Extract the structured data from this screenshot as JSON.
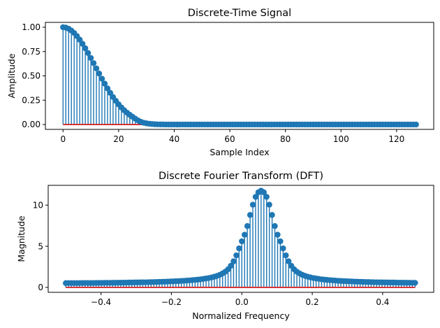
{
  "chart_data": [
    {
      "type": "stem",
      "title": "Discrete-Time Signal",
      "xlabel": "Sample Index",
      "ylabel": "Amplitude",
      "xlim": [
        -6.35,
        133.35
      ],
      "ylim": [
        -0.05,
        1.05
      ],
      "xticks": [
        0,
        20,
        40,
        60,
        80,
        100,
        120
      ],
      "xtick_labels": [
        "0",
        "20",
        "40",
        "60",
        "80",
        "100",
        "120"
      ],
      "yticks": [
        0.0,
        0.25,
        0.5,
        0.75,
        1.0
      ],
      "ytick_labels": [
        "0.00",
        "0.25",
        "0.50",
        "0.75",
        "1.00"
      ],
      "colors": {
        "stem": "#1f77b4",
        "baseline": "#d62728"
      },
      "series": [
        {
          "x_start": 0,
          "x_step": 1,
          "values": [
            1.0,
            0.996,
            0.985,
            0.966,
            0.941,
            0.909,
            0.872,
            0.83,
            0.784,
            0.735,
            0.684,
            0.631,
            0.577,
            0.524,
            0.471,
            0.42,
            0.371,
            0.325,
            0.282,
            0.243,
            0.207,
            0.175,
            0.147,
            0.122,
            0.1,
            0.08,
            0.06,
            0.042,
            0.028,
            0.018,
            0.012,
            0.008,
            0.005,
            0.003,
            0.002,
            0.001,
            0.001,
            0,
            0,
            0,
            0,
            0,
            0,
            0,
            0,
            0,
            0,
            0,
            0,
            0,
            0,
            0,
            0,
            0,
            0,
            0,
            0,
            0,
            0,
            0,
            0,
            0,
            0,
            0,
            0,
            0,
            0,
            0,
            0,
            0,
            0,
            0,
            0,
            0,
            0,
            0,
            0,
            0,
            0,
            0,
            0,
            0,
            0,
            0,
            0,
            0,
            0,
            0,
            0,
            0,
            0,
            0,
            0,
            0,
            0,
            0,
            0,
            0,
            0,
            0,
            0,
            0,
            0,
            0,
            0,
            0,
            0,
            0,
            0,
            0,
            0,
            0,
            0,
            0,
            0,
            0,
            0,
            0,
            0,
            0,
            0,
            0,
            0,
            0,
            0,
            0,
            0,
            0
          ]
        }
      ]
    },
    {
      "type": "stem",
      "title": "Discrete Fourier Transform (DFT)",
      "xlabel": "Normalized Frequency",
      "ylabel": "Magnitude",
      "xlim": [
        -0.55,
        0.545
      ],
      "ylim": [
        -0.6,
        12.4
      ],
      "xticks": [
        -0.4,
        -0.2,
        0.0,
        0.2,
        0.4
      ],
      "xtick_labels": [
        "−0.4",
        "−0.2",
        "0.0",
        "0.2",
        "0.4"
      ],
      "yticks": [
        0,
        5,
        10
      ],
      "ytick_labels": [
        "0",
        "5",
        "10"
      ],
      "colors": {
        "stem": "#1f77b4",
        "baseline": "#d62728"
      },
      "series": [
        {
          "x_start": -0.5,
          "x_step": 0.0078125,
          "values": [
            0.52,
            0.52,
            0.52,
            0.52,
            0.52,
            0.52,
            0.53,
            0.53,
            0.53,
            0.53,
            0.53,
            0.54,
            0.54,
            0.54,
            0.55,
            0.55,
            0.55,
            0.56,
            0.56,
            0.57,
            0.57,
            0.57,
            0.58,
            0.59,
            0.59,
            0.6,
            0.6,
            0.61,
            0.62,
            0.62,
            0.63,
            0.64,
            0.65,
            0.66,
            0.67,
            0.68,
            0.69,
            0.7,
            0.72,
            0.73,
            0.75,
            0.76,
            0.78,
            0.8,
            0.83,
            0.85,
            0.88,
            0.91,
            0.94,
            0.98,
            1.03,
            1.08,
            1.14,
            1.21,
            1.3,
            1.4,
            1.53,
            1.7,
            1.91,
            2.2,
            2.62,
            3.17,
            3.89,
            4.74,
            5.6,
            6.4,
            7.45,
            8.8,
            10.05,
            11.0,
            11.55,
            11.75,
            11.55,
            11.0,
            10.05,
            8.8,
            7.45,
            6.4,
            5.6,
            4.74,
            3.89,
            3.17,
            2.62,
            2.2,
            1.91,
            1.7,
            1.53,
            1.4,
            1.3,
            1.21,
            1.14,
            1.08,
            1.03,
            0.98,
            0.94,
            0.91,
            0.88,
            0.85,
            0.83,
            0.8,
            0.78,
            0.76,
            0.75,
            0.73,
            0.72,
            0.7,
            0.69,
            0.68,
            0.67,
            0.66,
            0.65,
            0.64,
            0.63,
            0.62,
            0.62,
            0.61,
            0.6,
            0.6,
            0.59,
            0.59,
            0.58,
            0.57,
            0.57,
            0.57,
            0.56,
            0.56,
            0.55,
            0.55
          ]
        }
      ]
    }
  ]
}
